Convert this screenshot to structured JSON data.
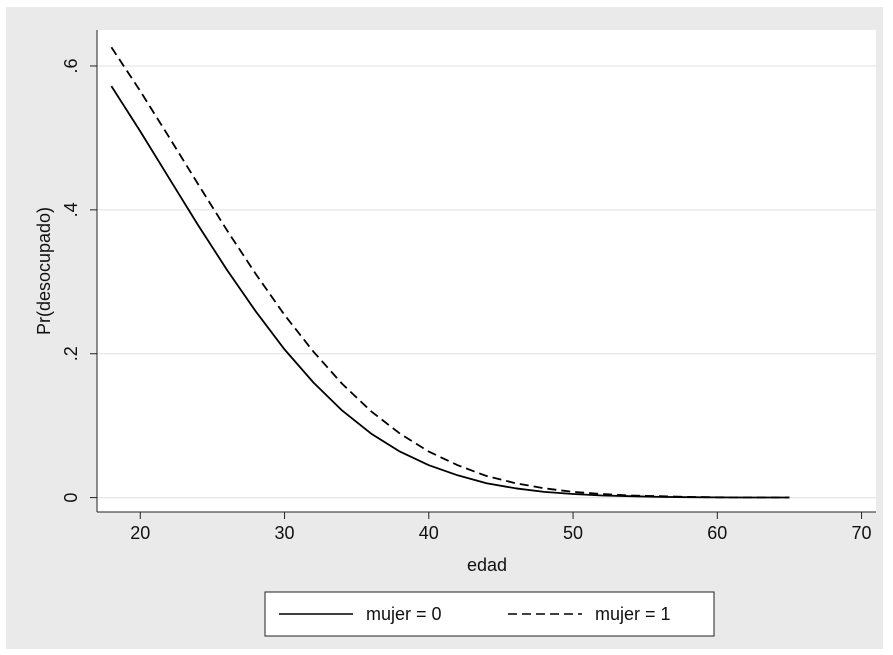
{
  "chart_data": {
    "type": "line",
    "title": "",
    "xlabel": "edad",
    "ylabel": "Pr(desocupado)",
    "xlim": [
      17,
      71
    ],
    "ylim": [
      -0.02,
      0.65
    ],
    "xticks": [
      {
        "value": 20,
        "label": "20"
      },
      {
        "value": 30,
        "label": "30"
      },
      {
        "value": 40,
        "label": "40"
      },
      {
        "value": 50,
        "label": "50"
      },
      {
        "value": 60,
        "label": "60"
      },
      {
        "value": 70,
        "label": "70"
      }
    ],
    "yticks": [
      {
        "value": 0,
        "label": "0"
      },
      {
        "value": 0.2,
        "label": ".2"
      },
      {
        "value": 0.4,
        "label": ".4"
      },
      {
        "value": 0.6,
        "label": ".6"
      }
    ],
    "grid": true,
    "legend_position": "bottom",
    "x": [
      18,
      20,
      22,
      24,
      26,
      28,
      30,
      32,
      34,
      36,
      38,
      40,
      42,
      44,
      46,
      48,
      50,
      52,
      54,
      56,
      58,
      60,
      62,
      65
    ],
    "series": [
      {
        "name": "mujer = 0",
        "style": "solid",
        "color": "#000000",
        "values": [
          0.572,
          0.509,
          0.444,
          0.379,
          0.317,
          0.259,
          0.206,
          0.16,
          0.121,
          0.089,
          0.064,
          0.045,
          0.031,
          0.02,
          0.013,
          0.008,
          0.005,
          0.003,
          0.002,
          0.001,
          0.0006,
          0.0003,
          0.0002,
          0.0001
        ]
      },
      {
        "name": "mujer = 1",
        "style": "dashed",
        "color": "#000000",
        "values": [
          0.626,
          0.565,
          0.501,
          0.436,
          0.372,
          0.311,
          0.254,
          0.203,
          0.158,
          0.12,
          0.089,
          0.064,
          0.045,
          0.03,
          0.02,
          0.013,
          0.008,
          0.005,
          0.003,
          0.002,
          0.001,
          0.0005,
          0.0003,
          0.0001
        ]
      }
    ]
  }
}
